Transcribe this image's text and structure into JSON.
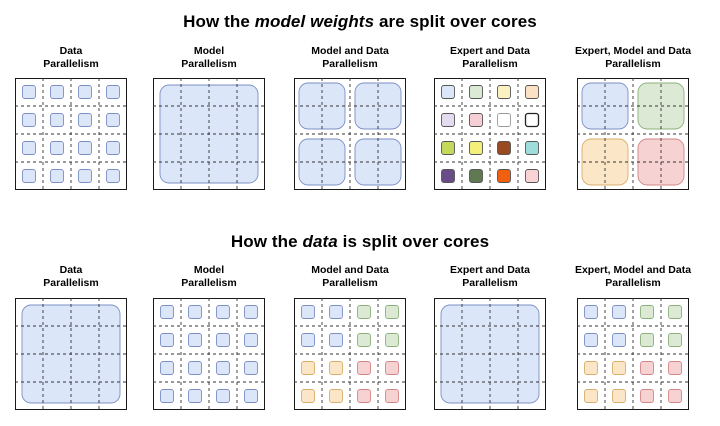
{
  "weights_section": {
    "title_prefix": "How the ",
    "title_emph": "model weights",
    "title_suffix": " are split over cores"
  },
  "data_section": {
    "title_prefix": "How the ",
    "title_emph": "data",
    "title_suffix": " is split over cores"
  },
  "panel_labels": [
    {
      "line1": "Data",
      "line2": "Parallelism"
    },
    {
      "line1": "Model",
      "line2": "Parallelism"
    },
    {
      "line1": "Model and Data",
      "line2": "Parallelism"
    },
    {
      "line1": "Expert and Data",
      "line2": "Parallelism"
    },
    {
      "line1": "Expert, Model and Data",
      "line2": "Parallelism"
    }
  ],
  "colors": {
    "blue": {
      "fill": "#dbe6f8",
      "stroke": "#7b8fc6"
    },
    "green": {
      "fill": "#dcead5",
      "stroke": "#8cb07a"
    },
    "yellow": {
      "fill": "#fbe6c7",
      "stroke": "#d9ad6a"
    },
    "red": {
      "fill": "#f7d2d2",
      "stroke": "#d38686"
    },
    "expert_palette": [
      [
        "#dbe6f8",
        "#dcead5",
        "#fbf2c4",
        "#fbe2c2"
      ],
      [
        "#e3dcef",
        "#f6cfd4",
        "#ffffff",
        "#ffffff"
      ],
      [
        "#c4d85b",
        "#f4f07a",
        "#9a4a22",
        "#9fdcdc"
      ],
      [
        "#6b4c8a",
        "#5f7a52",
        "#f0600e",
        "#fad3d6"
      ]
    ]
  },
  "weights_panels": [
    {
      "type": "small",
      "pattern": [
        [
          "blue",
          "blue",
          "blue",
          "blue"
        ],
        [
          "blue",
          "blue",
          "blue",
          "blue"
        ],
        [
          "blue",
          "blue",
          "blue",
          "blue"
        ],
        [
          "blue",
          "blue",
          "blue",
          "blue"
        ]
      ]
    },
    {
      "type": "big",
      "blocks": [
        [
          "blue"
        ]
      ]
    },
    {
      "type": "big",
      "blocks": [
        [
          "blue",
          "blue"
        ],
        [
          "blue",
          "blue"
        ]
      ]
    },
    {
      "type": "expert"
    },
    {
      "type": "big",
      "blocks": [
        [
          "blue",
          "green"
        ],
        [
          "yellow",
          "red"
        ]
      ]
    }
  ],
  "data_panels": [
    {
      "type": "big",
      "blocks": [
        [
          "blue"
        ]
      ]
    },
    {
      "type": "small",
      "pattern": [
        [
          "blue",
          "blue",
          "blue",
          "blue"
        ],
        [
          "blue",
          "blue",
          "blue",
          "blue"
        ],
        [
          "blue",
          "blue",
          "blue",
          "blue"
        ],
        [
          "blue",
          "blue",
          "blue",
          "blue"
        ]
      ]
    },
    {
      "type": "small",
      "pattern": [
        [
          "blue",
          "blue",
          "green",
          "green"
        ],
        [
          "blue",
          "blue",
          "green",
          "green"
        ],
        [
          "yellow",
          "yellow",
          "red",
          "red"
        ],
        [
          "yellow",
          "yellow",
          "red",
          "red"
        ]
      ]
    },
    {
      "type": "big",
      "blocks": [
        [
          "blue"
        ]
      ]
    },
    {
      "type": "small",
      "pattern": [
        [
          "blue",
          "blue",
          "green",
          "green"
        ],
        [
          "blue",
          "blue",
          "green",
          "green"
        ],
        [
          "yellow",
          "yellow",
          "red",
          "red"
        ],
        [
          "yellow",
          "yellow",
          "red",
          "red"
        ]
      ]
    }
  ]
}
